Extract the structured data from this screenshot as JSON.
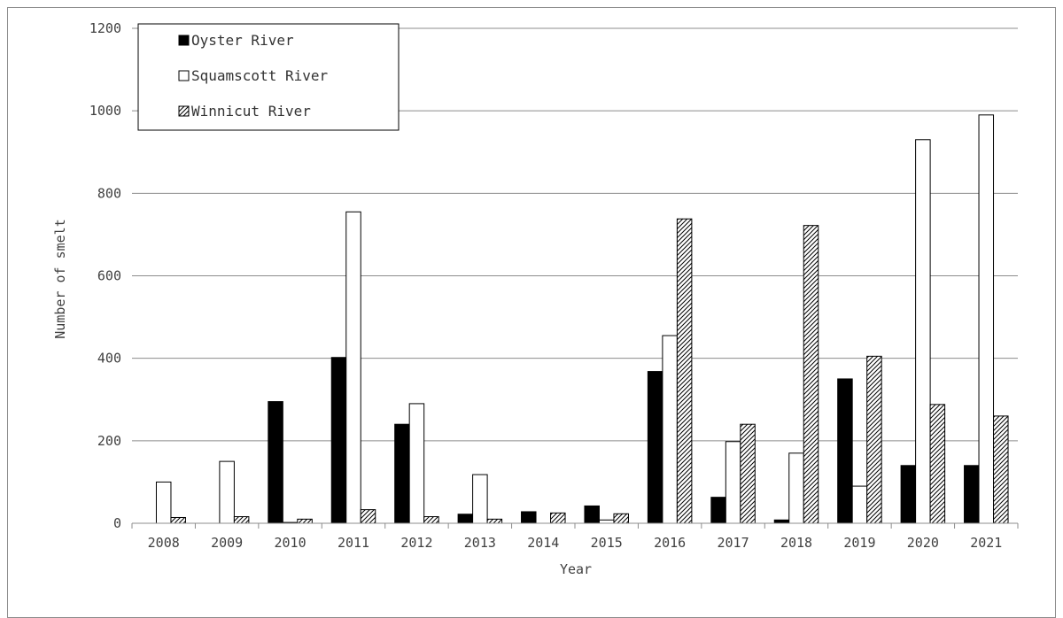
{
  "chart_data": {
    "type": "bar",
    "title": "",
    "xlabel": "Year",
    "ylabel": "Number of smelt",
    "ylim": [
      0,
      1200
    ],
    "yticks": [
      0,
      200,
      400,
      600,
      800,
      1000,
      1200
    ],
    "grid": true,
    "legend_position": "top-left",
    "categories": [
      "2008",
      "2009",
      "2010",
      "2011",
      "2012",
      "2013",
      "2014",
      "2015",
      "2016",
      "2017",
      "2018",
      "2019",
      "2020",
      "2021"
    ],
    "series": [
      {
        "name": "Oyster River",
        "fill": "solid-black",
        "values": [
          0,
          0,
          295,
          402,
          240,
          22,
          28,
          42,
          368,
          63,
          8,
          350,
          140,
          140
        ]
      },
      {
        "name": "Squamscott River",
        "fill": "white",
        "values": [
          100,
          150,
          2,
          755,
          290,
          118,
          0,
          8,
          455,
          198,
          170,
          90,
          930,
          990
        ]
      },
      {
        "name": "Winnicut River",
        "fill": "diagonal-hatch",
        "values": [
          14,
          16,
          10,
          33,
          16,
          10,
          25,
          23,
          738,
          240,
          722,
          405,
          288,
          260
        ]
      }
    ]
  }
}
